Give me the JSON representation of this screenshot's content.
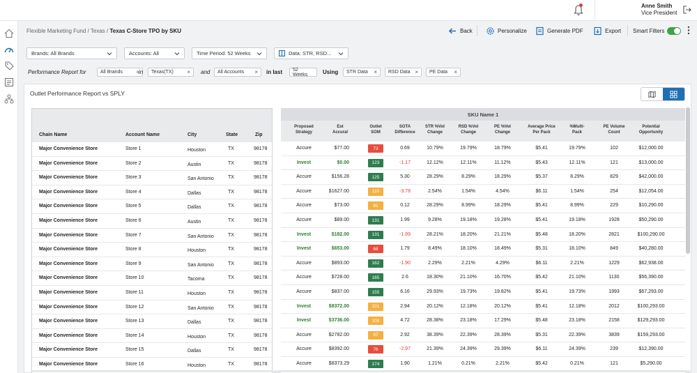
{
  "topbar": {
    "user_name": "Anne Smith",
    "user_role": "Vice President"
  },
  "breadcrumb": {
    "path": "Flexible Marketing Fund / Texas / ",
    "current": "Texas C-Store TPO by SKU"
  },
  "actions": {
    "back": "Back",
    "personalize": "Personalize",
    "generate_pdf": "Generate PDF",
    "export": "Export",
    "smart_filters": "Smart Filters"
  },
  "filters": {
    "brands": "Brands: All Brands",
    "accounts": "Accounts: All",
    "time_period": "Time Period: 52 Weeks",
    "data": "Data: STR, RSD..."
  },
  "performance_row": {
    "label": "Performance Report for",
    "chip_brands": "All Brands",
    "in": "in",
    "chip_state": "Texas(TX)",
    "and": "and",
    "chip_accounts": "All Accounts",
    "in_last": "in last",
    "chip_weeks": "52 Weeks",
    "using": "Using",
    "chip_str": "STR Data",
    "chip_rsd": "RSD Data",
    "chip_pe": "PE Data"
  },
  "card": {
    "title": "Outlet Performance Report vs SPLY"
  },
  "left_columns": [
    "Chain Name",
    "Account Name",
    "City",
    "State",
    "Zip"
  ],
  "sku_band": "SKU Name 1",
  "right_columns": [
    [
      "Proposed",
      "Strategy"
    ],
    [
      "Est",
      "Accural"
    ],
    [
      "Outlet",
      "SOM"
    ],
    [
      "SOTA",
      "Difference"
    ],
    [
      "STR %Vol",
      "Change"
    ],
    [
      "RSD %Vol",
      "Change"
    ],
    [
      "PE %Vol",
      "Change"
    ],
    [
      "Average Price",
      "Per Pack"
    ],
    [
      "%Multi-",
      "Pack"
    ],
    [
      "PE Volume",
      "Count"
    ],
    [
      "Potential",
      "Opportunity"
    ]
  ],
  "rows": [
    {
      "chain": "Major Convenience Store",
      "account": "Store 1",
      "city": "Houston",
      "state": "TX",
      "zip": "98178",
      "strategy": "Accure",
      "accural": "$77.00",
      "som": "73",
      "som_color": "red",
      "sota": "0.69",
      "sota_neg": false,
      "str": "10.79%",
      "rsd": "19.79%",
      "pe": "18.79%",
      "avg": "$5.41",
      "multi": "19.79%",
      "pevol": "102",
      "opp": "$12,000.00"
    },
    {
      "chain": "Major Convenience Store",
      "account": "Store 2",
      "city": "Austin",
      "state": "TX",
      "zip": "98178",
      "strategy": "Invest",
      "accural": "$0.00",
      "som": "123",
      "som_color": "green",
      "sota": "-1.17",
      "sota_neg": true,
      "str": "12.12%",
      "rsd": "12.11%",
      "pe": "11.12%",
      "avg": "$5.43",
      "multi": "12.11%",
      "pevol": "121",
      "opp": "$13,000.00"
    },
    {
      "chain": "Major Convenience Store",
      "account": "Store 3",
      "city": "San Antonio",
      "state": "TX",
      "zip": "98178",
      "strategy": "Accure",
      "accural": "$156.28",
      "som": "125",
      "som_color": "green",
      "sota": "5.30",
      "sota_neg": false,
      "str": "28.29%",
      "rsd": "8.29%",
      "pe": "18.29%",
      "avg": "$5.37",
      "multi": "8.29%",
      "pevol": "829",
      "opp": "$42,000.00"
    },
    {
      "chain": "Major Convenience Store",
      "account": "Store 4",
      "city": "Dallas",
      "state": "TX",
      "zip": "98178",
      "strategy": "Accure",
      "accural": "$1627.00",
      "som": "110",
      "som_color": "orange",
      "sota": "-3.78",
      "sota_neg": true,
      "str": "2.54%",
      "rsd": "1.54%",
      "pe": "4.54%",
      "avg": "$6.11",
      "multi": "1.54%",
      "pevol": "254",
      "opp": "$12,054.00"
    },
    {
      "chain": "Major Convenience Store",
      "account": "Store 5",
      "city": "Dallas",
      "state": "TX",
      "zip": "98178",
      "strategy": "Accure",
      "accural": "$73.00",
      "som": "91",
      "som_color": "orange",
      "sota": "0.12",
      "sota_neg": false,
      "str": "28.29%",
      "rsd": "8.99%",
      "pe": "18.29%",
      "avg": "$5.41",
      "multi": "8.99%",
      "pevol": "229",
      "opp": "$10,290.00"
    },
    {
      "chain": "Major Convenience Store",
      "account": "Store 6",
      "city": "Austin",
      "state": "TX",
      "zip": "98178",
      "strategy": "Accure",
      "accural": "$89.00",
      "som": "131",
      "som_color": "green",
      "sota": "1.99",
      "sota_neg": false,
      "str": "9.28%",
      "rsd": "19.18%",
      "pe": "19.28%",
      "avg": "$5.41",
      "multi": "19.18%",
      "pevol": "1928",
      "opp": "$50,290.00"
    },
    {
      "chain": "Major Convenience Store",
      "account": "Store 7",
      "city": "San Antonio",
      "state": "TX",
      "zip": "98178",
      "strategy": "Invest",
      "accural": "$182.00",
      "som": "131",
      "som_color": "green",
      "sota": "-1.99",
      "sota_neg": true,
      "str": "28.21%",
      "rsd": "18.20%",
      "pe": "21.21%",
      "avg": "$5.48",
      "multi": "18.20%",
      "pevol": "2821",
      "opp": "$100,290.00"
    },
    {
      "chain": "Major Convenience Store",
      "account": "Store 8",
      "city": "Houston",
      "state": "TX",
      "zip": "98178",
      "strategy": "Invest",
      "accural": "$653.00",
      "som": "68",
      "som_color": "red",
      "sota": "1.79",
      "sota_neg": false,
      "str": "8.49%",
      "rsd": "18.10%",
      "pe": "18.49%",
      "avg": "$5.31",
      "multi": "18.10%",
      "pevol": "849",
      "opp": "$40,280.00"
    },
    {
      "chain": "Major Convenience Store",
      "account": "Store 9",
      "city": "San Antonio",
      "state": "TX",
      "zip": "98178",
      "strategy": "Accure",
      "accural": "$893.00",
      "som": "162",
      "som_color": "green",
      "sota": "-1.90",
      "sota_neg": true,
      "str": "2.29%",
      "rsd": "2.21%",
      "pe": "4.29%",
      "avg": "$6.11",
      "multi": "2.21%",
      "pevol": "1229",
      "opp": "$62,938.00"
    },
    {
      "chain": "Major Convenience Store",
      "account": "Store 10",
      "city": "Tacoma",
      "state": "TX",
      "zip": "98178",
      "strategy": "Accure",
      "accural": "$728.00",
      "som": "165",
      "som_color": "green",
      "sota": "2.6",
      "sota_neg": false,
      "str": "18.30%",
      "rsd": "21.10%",
      "pe": "16.70%",
      "avg": "$5.42",
      "multi": "21.10%",
      "pevol": "1130",
      "opp": "$56,390.00"
    },
    {
      "chain": "Major Convenience Store",
      "account": "Store 11",
      "city": "Houston",
      "state": "TX",
      "zip": "98178",
      "strategy": "Accure",
      "accural": "$837.00",
      "som": "155",
      "som_color": "green",
      "sota": "6.16",
      "sota_neg": false,
      "str": "29.93%",
      "rsd": "19.73%",
      "pe": "19.82%",
      "avg": "$5.41",
      "multi": "19.73%",
      "pevol": "1993",
      "opp": "$67,293.00"
    },
    {
      "chain": "Major Convenience Store",
      "account": "Store 12",
      "city": "San Antonio",
      "state": "TX",
      "zip": "98178",
      "strategy": "Invest",
      "accural": "$8372.00",
      "som": "101",
      "som_color": "orange",
      "sota": "2.94",
      "sota_neg": false,
      "str": "20.12%",
      "rsd": "12.18%",
      "pe": "20.12%",
      "avg": "$5.41",
      "multi": "12.18%",
      "pevol": "2012",
      "opp": "$100,293.00"
    },
    {
      "chain": "Major Convenience Store",
      "account": "Store 13",
      "city": "Dallas",
      "state": "TX",
      "zip": "98178",
      "strategy": "Invest",
      "accural": "$3736.00",
      "som": "108",
      "som_color": "orange",
      "sota": "4.72",
      "sota_neg": false,
      "str": "28.38%",
      "rsd": "23.18%",
      "pe": "17.29%",
      "avg": "$5.48",
      "multi": "23.18%",
      "pevol": "2158",
      "opp": "$129,293.00"
    },
    {
      "chain": "Major Convenience Store",
      "account": "Store 14",
      "city": "Houston",
      "state": "TX",
      "zip": "98178",
      "strategy": "Accure",
      "accural": "$2782.00",
      "som": "97",
      "som_color": "orange",
      "sota": "2.92",
      "sota_neg": false,
      "str": "38.39%",
      "rsd": "22.39%",
      "pe": "28.39%",
      "avg": "$5.31",
      "multi": "22.39%",
      "pevol": "3839",
      "opp": "$159,293.00"
    },
    {
      "chain": "Major Convenience Store",
      "account": "Store 15",
      "city": "Dallas",
      "state": "TX",
      "zip": "98178",
      "strategy": "Accure",
      "accural": "$8392.00",
      "som": "76",
      "som_color": "red",
      "sota": "-2.97",
      "sota_neg": true,
      "str": "21.39%",
      "rsd": "24.39%",
      "pe": "29.39%",
      "avg": "$6.11",
      "multi": "24.39%",
      "pevol": "239",
      "opp": "$12,390.00"
    },
    {
      "chain": "Major Convenience Store",
      "account": "Store 16",
      "city": "Houston",
      "state": "TX",
      "zip": "98178",
      "strategy": "Accure",
      "accural": "$8373.29",
      "som": "174",
      "som_color": "green",
      "sota": "1.90",
      "sota_neg": false,
      "str": "1.21%",
      "rsd": "0.21%",
      "pe": "2.21%",
      "avg": "$5.42",
      "multi": "0.21%",
      "pevol": "121",
      "opp": "$5,290.00"
    }
  ]
}
